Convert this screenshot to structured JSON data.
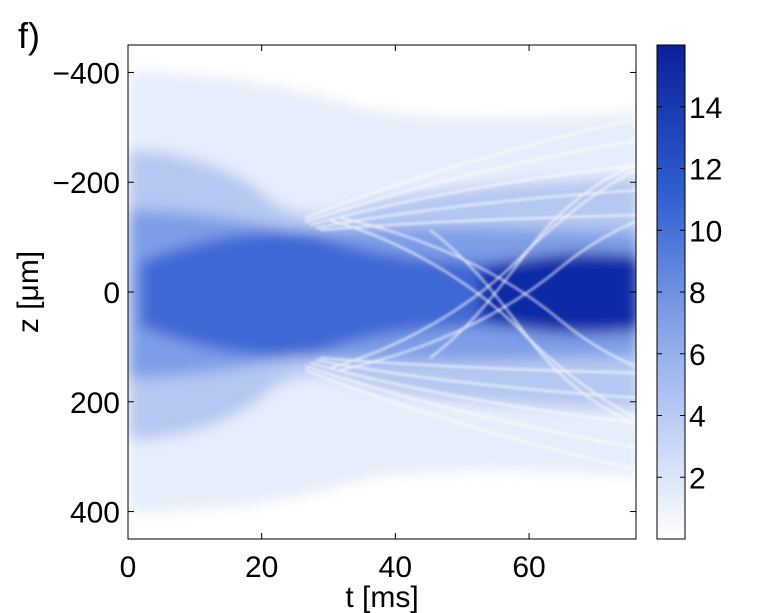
{
  "panel_label": "f)",
  "chart_data": {
    "type": "heatmap",
    "xlabel": "t [ms]",
    "ylabel": "z [μm]",
    "xlim": [
      0,
      76
    ],
    "ylim": [
      -450,
      450
    ],
    "y_reversed": true,
    "x_ticks": [
      0,
      20,
      40,
      60
    ],
    "x_tick_labels": [
      "0",
      "20",
      "40",
      "60"
    ],
    "y_ticks": [
      -400,
      -200,
      0,
      200,
      400
    ],
    "y_tick_labels": [
      "−400",
      "−200",
      "0",
      "200",
      "400"
    ],
    "colorbar": {
      "range": [
        0,
        16
      ],
      "ticks": [
        2,
        4,
        6,
        8,
        10,
        12,
        14
      ],
      "tick_labels": [
        "2",
        "4",
        "6",
        "8",
        "10",
        "12",
        "14"
      ],
      "colormap": [
        "#ffffff",
        "#0a1f9a"
      ]
    },
    "description_features": {
      "initial_half_width_um": 400,
      "core_half_width_um": 120,
      "fringe_onset_t_ms": 30,
      "max_density": 16
    }
  }
}
